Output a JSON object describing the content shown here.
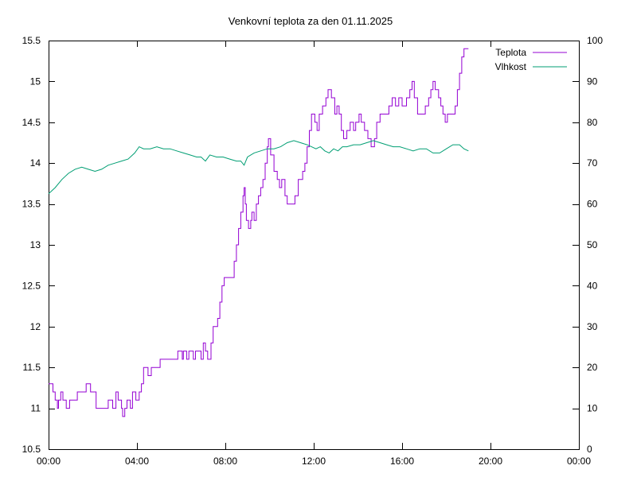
{
  "chart_data": {
    "type": "line",
    "title": "Venkovní teplota za den 01.11.2025",
    "xlabel": "",
    "ylabel": "",
    "y2label": "",
    "x_unit": "hours",
    "xlim": [
      0,
      24
    ],
    "ylim": [
      10.5,
      15.5
    ],
    "y2lim": [
      0,
      100
    ],
    "x_ticks": [
      {
        "v": 0,
        "label": "00:00"
      },
      {
        "v": 4,
        "label": "04:00"
      },
      {
        "v": 8,
        "label": "08:00"
      },
      {
        "v": 12,
        "label": "12:00"
      },
      {
        "v": 16,
        "label": "16:00"
      },
      {
        "v": 20,
        "label": "20:00"
      },
      {
        "v": 24,
        "label": "00:00"
      }
    ],
    "y_ticks": [
      {
        "v": 10.5,
        "label": "10.5"
      },
      {
        "v": 11,
        "label": "11"
      },
      {
        "v": 11.5,
        "label": "11.5"
      },
      {
        "v": 12,
        "label": "12"
      },
      {
        "v": 12.5,
        "label": "12.5"
      },
      {
        "v": 13,
        "label": "13"
      },
      {
        "v": 13.5,
        "label": "13.5"
      },
      {
        "v": 14,
        "label": "14"
      },
      {
        "v": 14.5,
        "label": "14.5"
      },
      {
        "v": 15,
        "label": "15"
      },
      {
        "v": 15.5,
        "label": "15.5"
      }
    ],
    "y2_ticks": [
      {
        "v": 0,
        "label": "0"
      },
      {
        "v": 10,
        "label": "10"
      },
      {
        "v": 20,
        "label": "20"
      },
      {
        "v": 30,
        "label": "30"
      },
      {
        "v": 40,
        "label": "40"
      },
      {
        "v": 50,
        "label": "50"
      },
      {
        "v": 60,
        "label": "60"
      },
      {
        "v": 70,
        "label": "70"
      },
      {
        "v": 80,
        "label": "80"
      },
      {
        "v": 90,
        "label": "90"
      },
      {
        "v": 100,
        "label": "100"
      }
    ],
    "grid": false,
    "legend_position": "top-right",
    "series": [
      {
        "name": "Teplota",
        "axis": "left",
        "style": "step",
        "color": "#9400d3",
        "points": [
          [
            0.0,
            11.3
          ],
          [
            0.2,
            11.2
          ],
          [
            0.3,
            11.1
          ],
          [
            0.4,
            11.0
          ],
          [
            0.45,
            11.1
          ],
          [
            0.55,
            11.2
          ],
          [
            0.65,
            11.1
          ],
          [
            0.8,
            11.0
          ],
          [
            0.95,
            11.1
          ],
          [
            1.3,
            11.2
          ],
          [
            1.7,
            11.3
          ],
          [
            1.9,
            11.2
          ],
          [
            2.15,
            11.0
          ],
          [
            2.7,
            11.1
          ],
          [
            2.9,
            11.0
          ],
          [
            3.05,
            11.2
          ],
          [
            3.15,
            11.1
          ],
          [
            3.3,
            11.0
          ],
          [
            3.35,
            10.9
          ],
          [
            3.45,
            11.0
          ],
          [
            3.55,
            11.1
          ],
          [
            3.7,
            11.0
          ],
          [
            3.8,
            11.2
          ],
          [
            3.95,
            11.1
          ],
          [
            4.1,
            11.2
          ],
          [
            4.2,
            11.3
          ],
          [
            4.3,
            11.5
          ],
          [
            4.5,
            11.4
          ],
          [
            4.65,
            11.5
          ],
          [
            5.05,
            11.6
          ],
          [
            5.7,
            11.6
          ],
          [
            5.85,
            11.7
          ],
          [
            6.05,
            11.6
          ],
          [
            6.1,
            11.7
          ],
          [
            6.25,
            11.6
          ],
          [
            6.35,
            11.7
          ],
          [
            6.55,
            11.6
          ],
          [
            6.65,
            11.7
          ],
          [
            6.9,
            11.6
          ],
          [
            7.0,
            11.8
          ],
          [
            7.1,
            11.7
          ],
          [
            7.2,
            11.6
          ],
          [
            7.35,
            11.8
          ],
          [
            7.45,
            12.0
          ],
          [
            7.65,
            12.1
          ],
          [
            7.75,
            12.3
          ],
          [
            7.85,
            12.5
          ],
          [
            7.95,
            12.6
          ],
          [
            8.4,
            12.8
          ],
          [
            8.5,
            13.0
          ],
          [
            8.6,
            13.2
          ],
          [
            8.7,
            13.4
          ],
          [
            8.8,
            13.6
          ],
          [
            8.85,
            13.7
          ],
          [
            8.9,
            13.5
          ],
          [
            8.95,
            13.3
          ],
          [
            9.05,
            13.2
          ],
          [
            9.15,
            13.3
          ],
          [
            9.2,
            13.4
          ],
          [
            9.3,
            13.3
          ],
          [
            9.4,
            13.5
          ],
          [
            9.5,
            13.6
          ],
          [
            9.6,
            13.7
          ],
          [
            9.7,
            13.8
          ],
          [
            9.8,
            14.0
          ],
          [
            9.9,
            14.2
          ],
          [
            9.95,
            14.3
          ],
          [
            10.05,
            14.1
          ],
          [
            10.2,
            13.9
          ],
          [
            10.35,
            13.8
          ],
          [
            10.45,
            13.7
          ],
          [
            10.55,
            13.8
          ],
          [
            10.7,
            13.6
          ],
          [
            10.8,
            13.5
          ],
          [
            11.0,
            13.5
          ],
          [
            11.15,
            13.6
          ],
          [
            11.3,
            13.8
          ],
          [
            11.5,
            13.9
          ],
          [
            11.6,
            14.0
          ],
          [
            11.7,
            14.2
          ],
          [
            11.8,
            14.4
          ],
          [
            11.9,
            14.6
          ],
          [
            12.05,
            14.5
          ],
          [
            12.15,
            14.4
          ],
          [
            12.25,
            14.6
          ],
          [
            12.4,
            14.7
          ],
          [
            12.55,
            14.8
          ],
          [
            12.65,
            14.9
          ],
          [
            12.8,
            14.8
          ],
          [
            12.95,
            14.6
          ],
          [
            13.05,
            14.7
          ],
          [
            13.15,
            14.6
          ],
          [
            13.25,
            14.4
          ],
          [
            13.35,
            14.3
          ],
          [
            13.5,
            14.4
          ],
          [
            13.65,
            14.5
          ],
          [
            13.8,
            14.4
          ],
          [
            13.9,
            14.5
          ],
          [
            14.05,
            14.6
          ],
          [
            14.15,
            14.5
          ],
          [
            14.3,
            14.4
          ],
          [
            14.45,
            14.3
          ],
          [
            14.6,
            14.2
          ],
          [
            14.75,
            14.3
          ],
          [
            14.85,
            14.5
          ],
          [
            15.0,
            14.6
          ],
          [
            15.4,
            14.7
          ],
          [
            15.55,
            14.8
          ],
          [
            15.7,
            14.7
          ],
          [
            15.85,
            14.8
          ],
          [
            16.0,
            14.7
          ],
          [
            16.2,
            14.8
          ],
          [
            16.35,
            14.9
          ],
          [
            16.45,
            15.0
          ],
          [
            16.55,
            14.8
          ],
          [
            16.7,
            14.6
          ],
          [
            17.05,
            14.7
          ],
          [
            17.2,
            14.8
          ],
          [
            17.3,
            14.9
          ],
          [
            17.4,
            15.0
          ],
          [
            17.5,
            14.9
          ],
          [
            17.65,
            14.8
          ],
          [
            17.75,
            14.7
          ],
          [
            17.85,
            14.6
          ],
          [
            17.95,
            14.5
          ],
          [
            18.05,
            14.6
          ],
          [
            18.4,
            14.7
          ],
          [
            18.5,
            14.9
          ],
          [
            18.6,
            15.1
          ],
          [
            18.7,
            15.3
          ],
          [
            18.8,
            15.4
          ],
          [
            19.0,
            15.4
          ]
        ]
      },
      {
        "name": "Vlhkost",
        "axis": "right",
        "style": "line",
        "color": "#009e73",
        "points": [
          [
            0.0,
            62.5
          ],
          [
            0.3,
            64
          ],
          [
            0.6,
            66
          ],
          [
            0.9,
            67.5
          ],
          [
            1.2,
            68.5
          ],
          [
            1.5,
            69
          ],
          [
            1.8,
            68.5
          ],
          [
            2.1,
            68
          ],
          [
            2.4,
            68.5
          ],
          [
            2.7,
            69.5
          ],
          [
            3.0,
            70
          ],
          [
            3.3,
            70.5
          ],
          [
            3.6,
            71
          ],
          [
            3.9,
            72.5
          ],
          [
            4.1,
            74
          ],
          [
            4.3,
            73.5
          ],
          [
            4.6,
            73.5
          ],
          [
            4.9,
            74
          ],
          [
            5.2,
            73.5
          ],
          [
            5.5,
            73.5
          ],
          [
            5.8,
            73
          ],
          [
            6.1,
            72.5
          ],
          [
            6.4,
            72
          ],
          [
            6.7,
            71.5
          ],
          [
            6.9,
            71.5
          ],
          [
            7.1,
            70.5
          ],
          [
            7.3,
            72
          ],
          [
            7.6,
            71.5
          ],
          [
            7.9,
            71.5
          ],
          [
            8.2,
            71
          ],
          [
            8.5,
            70.5
          ],
          [
            8.7,
            70.5
          ],
          [
            8.85,
            69.5
          ],
          [
            9.0,
            71.5
          ],
          [
            9.3,
            72.5
          ],
          [
            9.6,
            73
          ],
          [
            9.9,
            73.5
          ],
          [
            10.2,
            73.5
          ],
          [
            10.5,
            74
          ],
          [
            10.8,
            75
          ],
          [
            11.1,
            75.5
          ],
          [
            11.4,
            75
          ],
          [
            11.7,
            74.5
          ],
          [
            11.9,
            74
          ],
          [
            12.1,
            73.5
          ],
          [
            12.3,
            74
          ],
          [
            12.5,
            73
          ],
          [
            12.7,
            72.5
          ],
          [
            12.9,
            73.5
          ],
          [
            13.1,
            73
          ],
          [
            13.3,
            74
          ],
          [
            13.5,
            74
          ],
          [
            13.8,
            74.5
          ],
          [
            14.1,
            74.5
          ],
          [
            14.4,
            75
          ],
          [
            14.7,
            75.5
          ],
          [
            15.0,
            75
          ],
          [
            15.3,
            74.5
          ],
          [
            15.6,
            74
          ],
          [
            15.9,
            74
          ],
          [
            16.2,
            73.5
          ],
          [
            16.5,
            73
          ],
          [
            16.8,
            73.5
          ],
          [
            17.1,
            73.5
          ],
          [
            17.4,
            72.5
          ],
          [
            17.7,
            72.5
          ],
          [
            18.0,
            73.5
          ],
          [
            18.3,
            74.5
          ],
          [
            18.6,
            74.5
          ],
          [
            18.8,
            73.5
          ],
          [
            19.0,
            73
          ]
        ]
      }
    ]
  }
}
